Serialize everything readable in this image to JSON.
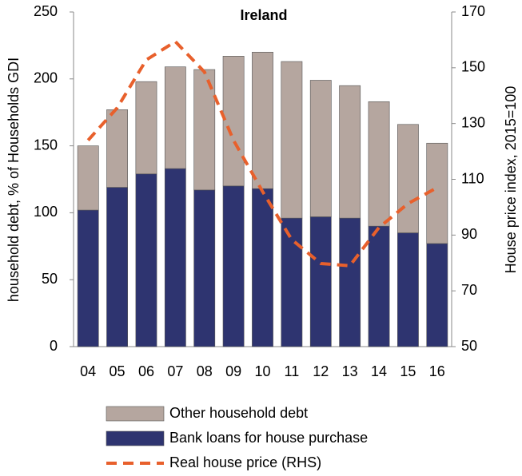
{
  "chart_data": {
    "type": "bar",
    "stacked": true,
    "title": "Ireland",
    "ylabel": "household debt, % of  Households GDI",
    "y2label": "House price index, 2015=100",
    "categories": [
      "04",
      "05",
      "06",
      "07",
      "08",
      "09",
      "10",
      "11",
      "12",
      "13",
      "14",
      "15",
      "16"
    ],
    "series": [
      {
        "name": "Bank loans for house purchase",
        "type": "bar",
        "color": "#2e3470",
        "values": [
          102,
          119,
          129,
          133,
          117,
          120,
          118,
          96,
          97,
          96,
          90,
          85,
          77
        ]
      },
      {
        "name": "Other household debt",
        "type": "bar",
        "color": "#b5a69f",
        "values": [
          48,
          58,
          69,
          76,
          90,
          97,
          102,
          117,
          102,
          99,
          93,
          81,
          75
        ]
      },
      {
        "name": "Real house price (RHS)",
        "type": "line",
        "axis": "y2",
        "color": "#e8602c",
        "dashed": true,
        "values": [
          124,
          135.6,
          152.8,
          159.4,
          148.5,
          124,
          105.6,
          88.4,
          79.8,
          79,
          92.7,
          101.3,
          107
        ]
      }
    ],
    "legend_order": [
      1,
      0,
      2
    ],
    "ylim": [
      0,
      250
    ],
    "yticks": [
      0,
      50,
      100,
      150,
      200,
      250
    ],
    "y2lim": [
      50,
      170
    ],
    "y2ticks": [
      50,
      70,
      90,
      110,
      130,
      150,
      170
    ],
    "grid": false
  }
}
